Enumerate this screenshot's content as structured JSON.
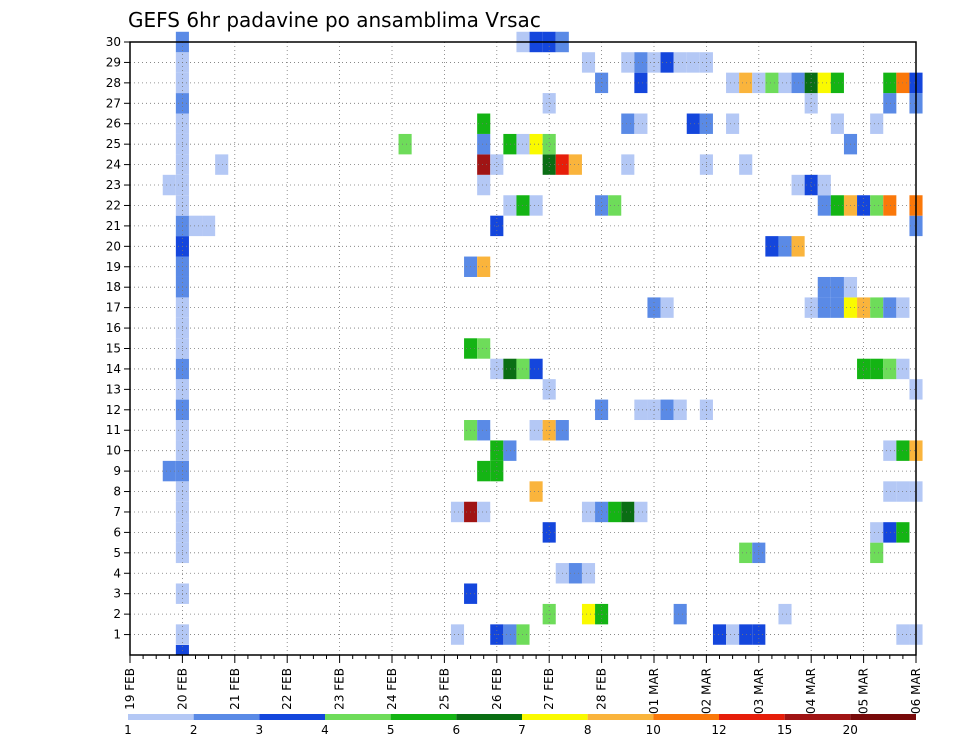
{
  "chart_data": {
    "type": "heatmap",
    "title": "GEFS 6hr padavine po ansamblima Vrsac",
    "xlabel": "",
    "ylabel": "",
    "x_tick_labels": [
      "19 FEB",
      "20 FEB",
      "21 FEB",
      "22 FEB",
      "23 FEB",
      "24 FEB",
      "25 FEB",
      "26 FEB",
      "27 FEB",
      "28 FEB",
      "01 MAR",
      "02 MAR",
      "03 MAR",
      "04 MAR",
      "05 MAR",
      "06 MAR"
    ],
    "y_tick_labels": [
      "1",
      "2",
      "3",
      "4",
      "5",
      "6",
      "7",
      "8",
      "9",
      "10",
      "11",
      "12",
      "13",
      "14",
      "15",
      "16",
      "17",
      "18",
      "19",
      "20",
      "21",
      "22",
      "23",
      "24",
      "25",
      "26",
      "27",
      "28",
      "29",
      "30"
    ],
    "x_range": [
      0,
      60
    ],
    "y_range": [
      0,
      30
    ],
    "grid": true,
    "legend_placement": "bottom",
    "colorbar": {
      "labels": [
        "1",
        "2",
        "3",
        "4",
        "5",
        "6",
        "7",
        "8",
        "10",
        "12",
        "15",
        "20"
      ],
      "colors": [
        "#b4c8f5",
        "#5a8ae6",
        "#1446dc",
        "#6edc5a",
        "#14b414",
        "#0a6e14",
        "#fafa00",
        "#fab43c",
        "#fa780a",
        "#e61e0a",
        "#a01414",
        "#780a0a"
      ]
    },
    "colors": {
      "c1": "#b4c8f5",
      "c2": "#5a8ae6",
      "c3": "#1446dc",
      "c4": "#6edc5a",
      "c5": "#14b414",
      "c6": "#0a6e14",
      "c7": "#fafa00",
      "c8": "#fab43c",
      "c10": "#fa780a",
      "c12": "#e61e0a",
      "c15": "#a01414",
      "c20": "#780a0a"
    },
    "series": [
      {
        "row": 0,
        "cells": [
          [
            4,
            3
          ]
        ]
      },
      {
        "row": 1,
        "cells": [
          [
            4,
            1
          ],
          [
            25,
            1
          ],
          [
            28,
            3
          ],
          [
            29,
            2
          ],
          [
            30,
            4
          ],
          [
            59,
            1
          ],
          [
            60,
            1
          ],
          [
            45,
            3
          ],
          [
            46,
            1
          ],
          [
            47,
            3
          ],
          [
            48,
            3
          ]
        ]
      },
      {
        "row": 2,
        "cells": [
          [
            32,
            4
          ],
          [
            35,
            7
          ],
          [
            36,
            5
          ],
          [
            42,
            2
          ],
          [
            50,
            1
          ]
        ]
      },
      {
        "row": 3,
        "cells": [
          [
            4,
            1
          ],
          [
            26,
            3
          ]
        ]
      },
      {
        "row": 4,
        "cells": [
          [
            33,
            1
          ],
          [
            34,
            2
          ],
          [
            35,
            1
          ]
        ]
      },
      {
        "row": 5,
        "cells": [
          [
            4,
            1
          ],
          [
            47,
            4
          ],
          [
            48,
            2
          ],
          [
            57,
            4
          ]
        ]
      },
      {
        "row": 6,
        "cells": [
          [
            4,
            1
          ],
          [
            32,
            3
          ],
          [
            57,
            1
          ],
          [
            58,
            3
          ],
          [
            59,
            5
          ]
        ]
      },
      {
        "row": 7,
        "cells": [
          [
            4,
            1
          ],
          [
            25,
            1
          ],
          [
            26,
            15
          ],
          [
            27,
            1
          ],
          [
            35,
            1
          ],
          [
            36,
            2
          ],
          [
            37,
            5
          ],
          [
            38,
            6
          ],
          [
            39,
            1
          ]
        ]
      },
      {
        "row": 8,
        "cells": [
          [
            4,
            1
          ],
          [
            31,
            8
          ],
          [
            58,
            1
          ],
          [
            59,
            1
          ],
          [
            60,
            1
          ]
        ]
      },
      {
        "row": 9,
        "cells": [
          [
            3,
            2
          ],
          [
            4,
            2
          ],
          [
            27,
            5
          ],
          [
            28,
            5
          ]
        ]
      },
      {
        "row": 10,
        "cells": [
          [
            4,
            1
          ],
          [
            28,
            5
          ],
          [
            29,
            2
          ],
          [
            58,
            1
          ],
          [
            59,
            5
          ],
          [
            60,
            8
          ]
        ]
      },
      {
        "row": 11,
        "cells": [
          [
            4,
            1
          ],
          [
            26,
            4
          ],
          [
            27,
            2
          ],
          [
            31,
            1
          ],
          [
            32,
            8
          ],
          [
            33,
            2
          ]
        ]
      },
      {
        "row": 12,
        "cells": [
          [
            4,
            2
          ],
          [
            36,
            2
          ],
          [
            39,
            1
          ],
          [
            40,
            1
          ],
          [
            41,
            2
          ],
          [
            42,
            1
          ],
          [
            44,
            1
          ]
        ]
      },
      {
        "row": 13,
        "cells": [
          [
            4,
            1
          ],
          [
            32,
            1
          ],
          [
            60,
            1
          ]
        ]
      },
      {
        "row": 14,
        "cells": [
          [
            4,
            2
          ],
          [
            28,
            1
          ],
          [
            29,
            6
          ],
          [
            30,
            4
          ],
          [
            31,
            3
          ],
          [
            56,
            5
          ],
          [
            57,
            5
          ],
          [
            58,
            4
          ],
          [
            59,
            1
          ]
        ]
      },
      {
        "row": 15,
        "cells": [
          [
            4,
            1
          ],
          [
            26,
            5
          ],
          [
            27,
            4
          ]
        ]
      },
      {
        "row": 16,
        "cells": [
          [
            4,
            1
          ]
        ]
      },
      {
        "row": 17,
        "cells": [
          [
            4,
            1
          ],
          [
            40,
            2
          ],
          [
            41,
            1
          ],
          [
            52,
            1
          ],
          [
            53,
            2
          ],
          [
            54,
            2
          ],
          [
            55,
            7
          ],
          [
            56,
            8
          ],
          [
            57,
            4
          ],
          [
            58,
            2
          ],
          [
            59,
            1
          ]
        ]
      },
      {
        "row": 18,
        "cells": [
          [
            4,
            2
          ],
          [
            53,
            2
          ],
          [
            54,
            2
          ],
          [
            55,
            1
          ]
        ]
      },
      {
        "row": 19,
        "cells": [
          [
            4,
            2
          ],
          [
            26,
            2
          ],
          [
            27,
            8
          ]
        ]
      },
      {
        "row": 20,
        "cells": [
          [
            4,
            3
          ],
          [
            49,
            3
          ],
          [
            50,
            2
          ],
          [
            51,
            8
          ]
        ]
      },
      {
        "row": 21,
        "cells": [
          [
            4,
            2
          ],
          [
            5,
            1
          ],
          [
            6,
            1
          ],
          [
            28,
            3
          ],
          [
            60,
            2
          ]
        ]
      },
      {
        "row": 22,
        "cells": [
          [
            4,
            1
          ],
          [
            29,
            1
          ],
          [
            30,
            5
          ],
          [
            31,
            1
          ],
          [
            36,
            2
          ],
          [
            37,
            4
          ],
          [
            53,
            2
          ],
          [
            54,
            5
          ],
          [
            55,
            8
          ],
          [
            56,
            3
          ],
          [
            57,
            4
          ],
          [
            58,
            10
          ],
          [
            60,
            10
          ]
        ]
      },
      {
        "row": 23,
        "cells": [
          [
            3,
            1
          ],
          [
            4,
            1
          ],
          [
            27,
            1
          ],
          [
            51,
            1
          ],
          [
            52,
            3
          ],
          [
            53,
            1
          ]
        ]
      },
      {
        "row": 24,
        "cells": [
          [
            4,
            1
          ],
          [
            7,
            1
          ],
          [
            27,
            15
          ],
          [
            28,
            1
          ],
          [
            32,
            6
          ],
          [
            33,
            12
          ],
          [
            34,
            8
          ],
          [
            38,
            1
          ],
          [
            44,
            1
          ],
          [
            47,
            1
          ]
        ]
      },
      {
        "row": 25,
        "cells": [
          [
            4,
            1
          ],
          [
            21,
            4
          ],
          [
            27,
            2
          ],
          [
            29,
            5
          ],
          [
            30,
            1
          ],
          [
            31,
            7
          ],
          [
            32,
            4
          ],
          [
            55,
            2
          ]
        ]
      },
      {
        "row": 26,
        "cells": [
          [
            4,
            1
          ],
          [
            27,
            5
          ],
          [
            38,
            2
          ],
          [
            39,
            1
          ],
          [
            43,
            3
          ],
          [
            44,
            2
          ],
          [
            46,
            1
          ],
          [
            54,
            1
          ],
          [
            57,
            1
          ]
        ]
      },
      {
        "row": 27,
        "cells": [
          [
            4,
            2
          ],
          [
            32,
            1
          ],
          [
            52,
            1
          ],
          [
            58,
            2
          ],
          [
            60,
            2
          ]
        ]
      },
      {
        "row": 28,
        "cells": [
          [
            4,
            1
          ],
          [
            36,
            2
          ],
          [
            39,
            3
          ],
          [
            46,
            1
          ],
          [
            47,
            8
          ],
          [
            48,
            1
          ],
          [
            49,
            4
          ],
          [
            50,
            1
          ],
          [
            51,
            2
          ],
          [
            52,
            6
          ],
          [
            53,
            7
          ],
          [
            54,
            5
          ],
          [
            58,
            5
          ],
          [
            59,
            10
          ],
          [
            60,
            3
          ]
        ]
      },
      {
        "row": 29,
        "cells": [
          [
            4,
            1
          ],
          [
            35,
            1
          ],
          [
            38,
            1
          ],
          [
            39,
            2
          ],
          [
            40,
            1
          ],
          [
            41,
            3
          ],
          [
            42,
            1
          ],
          [
            43,
            1
          ],
          [
            44,
            1
          ]
        ]
      },
      {
        "row": 30,
        "cells": [
          [
            4,
            2
          ],
          [
            30,
            1
          ],
          [
            31,
            3
          ],
          [
            32,
            3
          ],
          [
            33,
            2
          ]
        ]
      }
    ]
  }
}
